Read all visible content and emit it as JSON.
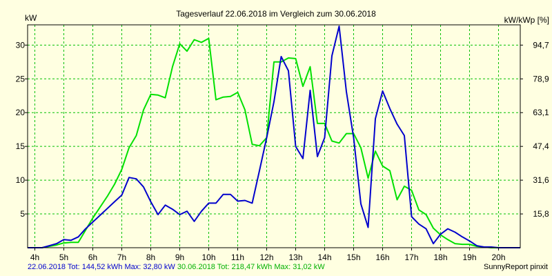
{
  "chart_data": {
    "type": "line",
    "title": "Tagesverlauf 22.06.2018 im Vergleich zum 30.06.2018",
    "ylabel_left": "kW",
    "ylabel_right": "kW/kWp [%]",
    "xlim": [
      3.75,
      20.75
    ],
    "ylim": [
      0,
      33
    ],
    "grid": true,
    "x_ticks": [
      4,
      5,
      6,
      7,
      8,
      9,
      10,
      11,
      12,
      13,
      14,
      15,
      16,
      17,
      18,
      19,
      20
    ],
    "x_tick_labels": [
      "4h",
      "5h",
      "6h",
      "7h",
      "8h",
      "9h",
      "10h",
      "11h",
      "12h",
      "13h",
      "14h",
      "15h",
      "16h",
      "17h",
      "18h",
      "19h",
      "20h"
    ],
    "y_ticks_left": [
      5,
      10,
      15,
      20,
      25,
      30
    ],
    "y_tick_labels_left": [
      "5",
      "10",
      "15",
      "20",
      "25",
      "30"
    ],
    "y_ticks_right": [
      5,
      10,
      15,
      20,
      25,
      30
    ],
    "y_tick_labels_right": [
      "15,8",
      "31,6",
      "47,4",
      "63,1",
      "78,9",
      "94,7"
    ],
    "series": [
      {
        "name": "22.06.2018",
        "color": "#0000cc",
        "x": [
          3.75,
          4.25,
          4.5,
          4.75,
          5.0,
          5.25,
          5.5,
          5.75,
          6.0,
          6.25,
          6.5,
          6.75,
          7.0,
          7.25,
          7.5,
          7.75,
          8.0,
          8.25,
          8.5,
          8.75,
          9.0,
          9.25,
          9.5,
          9.75,
          10.0,
          10.25,
          10.5,
          10.75,
          11.0,
          11.25,
          11.5,
          11.75,
          12.0,
          12.25,
          12.5,
          12.75,
          13.0,
          13.25,
          13.5,
          13.75,
          14.0,
          14.25,
          14.5,
          14.75,
          15.0,
          15.25,
          15.5,
          15.75,
          16.0,
          16.25,
          16.5,
          16.75,
          17.0,
          17.25,
          17.5,
          17.75,
          18.0,
          18.25,
          18.5,
          18.75,
          19.0,
          19.25,
          19.5,
          19.75,
          20.0,
          20.25,
          20.5,
          20.75
        ],
        "values": [
          0,
          0,
          0.3,
          0.6,
          1.2,
          1.1,
          1.6,
          2.8,
          3.8,
          4.8,
          5.8,
          6.8,
          7.8,
          10.4,
          10.2,
          9.0,
          6.8,
          4.9,
          6.3,
          5.7,
          4.9,
          5.4,
          3.9,
          5.4,
          6.6,
          6.6,
          7.9,
          7.9,
          6.9,
          7.0,
          6.6,
          11.4,
          16.3,
          21.6,
          28.3,
          26.2,
          15.0,
          13.2,
          23.3,
          13.5,
          16.3,
          28.4,
          32.8,
          23.1,
          16.3,
          6.5,
          3.0,
          19.1,
          23.2,
          20.6,
          18.3,
          16.6,
          4.6,
          3.5,
          2.8,
          0.6,
          2.0,
          2.8,
          2.3,
          1.6,
          1.0,
          0.3,
          0.1,
          0.1,
          0,
          0,
          0,
          0
        ]
      },
      {
        "name": "30.06.2018",
        "color": "#00e000",
        "x": [
          3.75,
          4.25,
          4.5,
          4.75,
          5.0,
          5.25,
          5.5,
          5.75,
          6.0,
          6.25,
          6.5,
          6.75,
          7.0,
          7.25,
          7.5,
          7.75,
          8.0,
          8.25,
          8.5,
          8.75,
          9.0,
          9.25,
          9.5,
          9.75,
          10.0,
          10.25,
          10.5,
          10.75,
          11.0,
          11.25,
          11.5,
          11.75,
          12.0,
          12.25,
          12.5,
          12.75,
          13.0,
          13.25,
          13.5,
          13.75,
          14.0,
          14.25,
          14.5,
          14.75,
          15.0,
          15.25,
          15.5,
          15.75,
          16.0,
          16.25,
          16.5,
          16.75,
          17.0,
          17.25,
          17.5,
          17.75,
          18.0,
          18.25,
          18.5,
          18.75,
          19.0,
          19.25,
          19.5,
          19.75,
          20.0,
          20.25,
          20.5,
          20.75
        ],
        "values": [
          0,
          0,
          0.2,
          0.4,
          0.7,
          0.8,
          0.8,
          2.6,
          4.4,
          6.0,
          7.6,
          9.4,
          11.6,
          14.8,
          16.6,
          20.4,
          22.7,
          22.6,
          22.2,
          26.8,
          30.2,
          29.1,
          30.8,
          30.4,
          31.0,
          21.9,
          22.3,
          22.4,
          23.0,
          20.4,
          15.3,
          15.1,
          16.3,
          27.5,
          27.5,
          28.1,
          28.0,
          23.9,
          26.8,
          18.4,
          18.4,
          15.8,
          15.5,
          16.9,
          16.9,
          14.8,
          10.3,
          14.3,
          12.1,
          11.4,
          7.1,
          9.1,
          8.5,
          5.6,
          4.9,
          2.9,
          1.9,
          1.2,
          0.6,
          0.5,
          0.5,
          0.2,
          0.1,
          0,
          0,
          0,
          0,
          0
        ]
      }
    ]
  },
  "footer": {
    "left": "22.06.2018 Tot: 144,52 kWh Max: 32,80 kW",
    "left_color": "#0000cc",
    "right": "30.06.2018 Tot: 218,47 kWh Max: 31,02 kW",
    "right_color": "#00b000",
    "credit": "SunnyReport pinxit"
  }
}
